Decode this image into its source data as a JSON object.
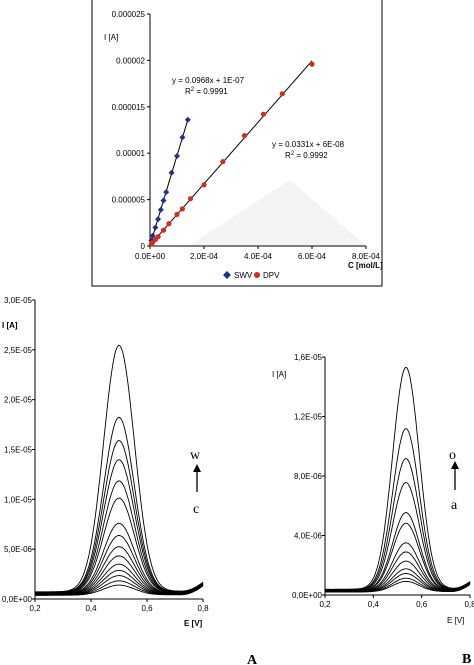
{
  "chart_data": [
    {
      "type": "scatter",
      "ylabel": "I [A]",
      "xlabel": "C [mol/L]",
      "xlim": [
        0,
        0.0008
      ],
      "ylim": [
        0,
        2.5e-05
      ],
      "x_ticks": [
        "0.0E+00",
        "2.0E-04",
        "4.0E-04",
        "6.0E-04",
        "8.0E-04"
      ],
      "y_ticks": [
        "0",
        "0.000005",
        "0.00001",
        "0.000015",
        "0.00002",
        "0.000025"
      ],
      "legend_position": "bottom",
      "series": [
        {
          "name": "SWV",
          "color": "#1f2f8f",
          "marker": "diamond",
          "x": [
            5e-06,
            1e-05,
            2e-05,
            3e-05,
            4e-05,
            5e-05,
            6e-05,
            8e-05,
            0.0001,
            0.00012,
            0.00014
          ],
          "y": [
            6e-07,
            1.1e-06,
            2e-06,
            2.9e-06,
            3.9e-06,
            4.9e-06,
            5.8e-06,
            7.9e-06,
            9.7e-06,
            1.17e-05,
            1.36e-05
          ],
          "fit_equation": "y = 0.0968x + 1E-07",
          "r2_label": "R",
          "r2_sup": "2",
          "r2_value": " = 0.9991"
        },
        {
          "name": "DPV",
          "color": "#d62a1e",
          "marker": "circle",
          "x": [
            5e-06,
            1e-05,
            2e-05,
            3e-05,
            5e-05,
            7e-05,
            0.0001,
            0.00012,
            0.00015,
            0.0002,
            0.00027,
            0.00035,
            0.00042,
            0.00049,
            0.0006
          ],
          "y": [
            2e-07,
            4e-07,
            7e-07,
            1e-06,
            1.7e-06,
            2.4e-06,
            3.4e-06,
            4e-06,
            5.1e-06,
            6.6e-06,
            9.1e-06,
            1.19e-05,
            1.42e-05,
            1.64e-05,
            1.96e-05
          ],
          "fit_equation": "y = 0.0331x + 6E-08",
          "r2_label": "R",
          "r2_sup": "2",
          "r2_value": " = 0.9992"
        }
      ]
    },
    {
      "type": "line",
      "panel_label": "A",
      "ylabel": "I [A]",
      "xlabel": "E [V]",
      "xlim": [
        0.2,
        0.8
      ],
      "ylim": [
        0,
        3e-05
      ],
      "x_ticks": [
        "0,2",
        "0,4",
        "0,6",
        "0,8"
      ],
      "y_ticks": [
        "0,0E+00",
        "5,0E-06",
        "1,0E-05",
        "1,5E-05",
        "2,0E-05",
        "2,5E-05",
        "3,0E-05"
      ],
      "arrow_top": "w",
      "arrow_bottom": "c",
      "peak_potential": 0.5,
      "peak_currents": [
        2.47e-05,
        1.75e-05,
        1.52e-05,
        1.33e-05,
        1.12e-05,
        9.5e-06,
        7e-06,
        5.8e-06,
        4.7e-06,
        3.8e-06,
        3e-06,
        2.4e-06,
        1.9e-06,
        1.4e-06,
        1e-06
      ]
    },
    {
      "type": "line",
      "panel_label": "B",
      "ylabel": "I [A]",
      "xlabel": "E [V]",
      "xlim": [
        0.2,
        0.8
      ],
      "ylim": [
        0,
        1.6e-05
      ],
      "x_ticks": [
        "0,2",
        "0,4",
        "0,6",
        "0,8"
      ],
      "y_ticks": [
        "0,0E+00",
        "4,0E-06",
        "8,0E-06",
        "1,2E-05",
        "1,6E-05"
      ],
      "arrow_top": "o",
      "arrow_bottom": "a",
      "peak_potential": 0.535,
      "peak_currents": [
        1.49e-05,
        1.08e-05,
        8.8e-06,
        7.2e-06,
        5.2e-06,
        4.5e-06,
        3.2e-06,
        2.6e-06,
        2e-06,
        1.5e-06,
        1.2e-06,
        9e-07,
        7e-07
      ]
    }
  ]
}
